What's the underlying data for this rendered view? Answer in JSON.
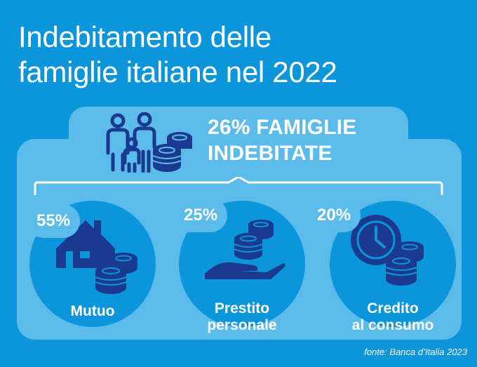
{
  "title_line1": "Indebitamento delle",
  "title_line2": "famiglie italiane nel 2022",
  "headline_line1": "26% FAMIGLIE",
  "headline_line2": "INDEBITATE",
  "items": [
    {
      "percent": "55%",
      "label_line1": "Mutuo",
      "label_line2": "",
      "icon": "house-coins-icon"
    },
    {
      "percent": "25%",
      "label_line1": "Prestito",
      "label_line2": "personale",
      "icon": "hand-coins-icon"
    },
    {
      "percent": "20%",
      "label_line1": "Credito",
      "label_line2": "al consumo",
      "icon": "clock-coins-icon"
    }
  ],
  "source": "fonte: Banca d’Italia 2023",
  "colors": {
    "background": "#0b96dc",
    "panel": "#5bbbeb",
    "icon_dark": "#1a3a8f",
    "text": "#ffffff"
  }
}
